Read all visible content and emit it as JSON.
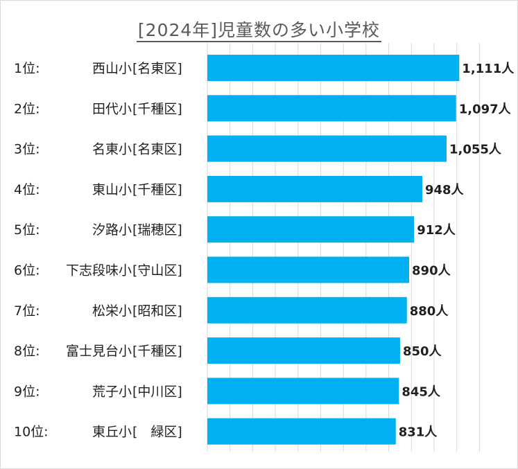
{
  "chart_data": {
    "type": "bar",
    "orientation": "horizontal",
    "title": "[2024年]児童数の多い小学校",
    "value_suffix": "人",
    "bar_color": "#00b0f0",
    "grid_color": "#d9d9d9",
    "xlim": [
      0,
      1200
    ],
    "grid_step": 100,
    "rows": [
      {
        "rank": "1位:",
        "school": "西山小",
        "ward": "[名東区]",
        "value": 1111,
        "value_label": "1,111人"
      },
      {
        "rank": "2位:",
        "school": "田代小",
        "ward": "[千種区]",
        "value": 1097,
        "value_label": "1,097人"
      },
      {
        "rank": "3位:",
        "school": "名東小",
        "ward": "[名東区]",
        "value": 1055,
        "value_label": "1,055人"
      },
      {
        "rank": "4位:",
        "school": "東山小",
        "ward": "[千種区]",
        "value": 948,
        "value_label": "948人"
      },
      {
        "rank": "5位:",
        "school": "汐路小",
        "ward": "[瑞穂区]",
        "value": 912,
        "value_label": "912人"
      },
      {
        "rank": "6位:",
        "school": "下志段味小",
        "ward": "[守山区]",
        "value": 890,
        "value_label": "890人"
      },
      {
        "rank": "7位:",
        "school": "松栄小",
        "ward": "[昭和区]",
        "value": 880,
        "value_label": "880人"
      },
      {
        "rank": "8位:",
        "school": "富士見台小",
        "ward": "[千種区]",
        "value": 850,
        "value_label": "850人"
      },
      {
        "rank": "9位:",
        "school": "荒子小",
        "ward": "[中川区]",
        "value": 845,
        "value_label": "845人"
      },
      {
        "rank": "10位:",
        "school": "東丘小",
        "ward": "[　緑区]",
        "value": 831,
        "value_label": "831人"
      }
    ]
  }
}
